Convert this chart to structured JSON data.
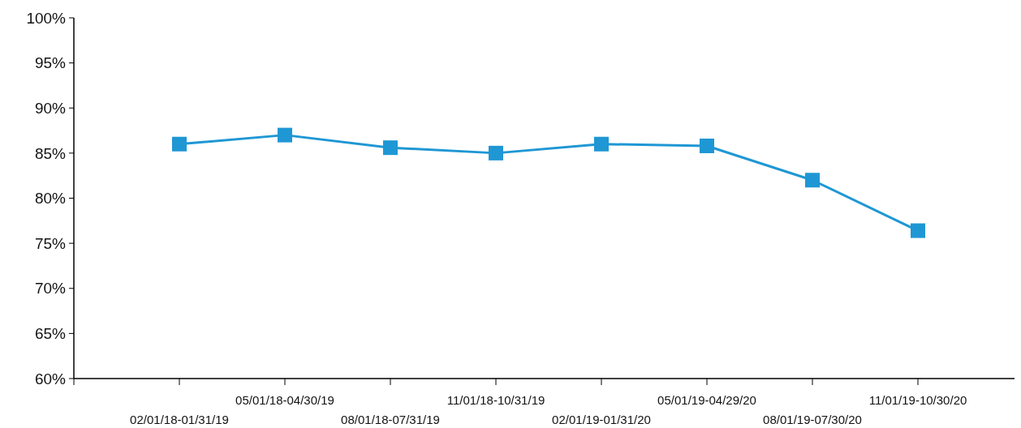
{
  "chart_data": {
    "type": "line",
    "categories": [
      "02/01/18-01/31/19",
      "05/01/18-04/30/19",
      "08/01/18-07/31/19",
      "11/01/18-10/31/19",
      "02/01/19-01/31/20",
      "05/01/19-04/29/20",
      "08/01/19-07/30/20",
      "11/01/19-10/30/20"
    ],
    "series": [
      {
        "color": "#1f97d4",
        "values": [
          86,
          87,
          85.6,
          85,
          86,
          85.8,
          82,
          76.4
        ]
      }
    ],
    "ylim": [
      60,
      100
    ],
    "yticks": [
      {
        "value": 60,
        "label": "60%"
      },
      {
        "value": 65,
        "label": "65%"
      },
      {
        "value": 70,
        "label": "70%"
      },
      {
        "value": 75,
        "label": "75%"
      },
      {
        "value": 80,
        "label": "80%"
      },
      {
        "value": 85,
        "label": "85%"
      },
      {
        "value": 90,
        "label": "90%"
      },
      {
        "value": 95,
        "label": "95%"
      },
      {
        "value": 100,
        "label": "100%"
      }
    ],
    "marker": "square",
    "line_style": "solid",
    "grid": false
  }
}
